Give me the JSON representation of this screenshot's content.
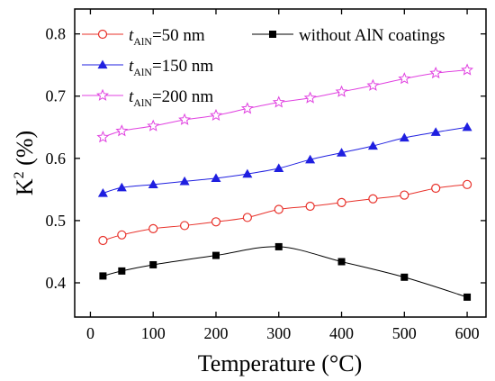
{
  "chart_data": {
    "type": "line",
    "xlabel": "Temperature (°C)",
    "ylabel": {
      "base": "K",
      "superscript": "2",
      "rest": " (%)"
    },
    "xlim": [
      -25,
      630
    ],
    "ylim": [
      0.345,
      0.84
    ],
    "xticks": [
      0,
      100,
      200,
      300,
      400,
      500,
      600
    ],
    "yticks": [
      0.4,
      0.5,
      0.6,
      0.7,
      0.8
    ],
    "grid": false,
    "legend": "top",
    "series": [
      {
        "key": "t50",
        "name": {
          "prefix": "t",
          "sub": "AlN",
          "rest": "=50 nm"
        },
        "color": "#e8312a",
        "marker": "open-circle",
        "x": [
          20,
          50,
          100,
          150,
          200,
          250,
          300,
          350,
          400,
          450,
          500,
          550,
          600
        ],
        "values": [
          0.468,
          0.477,
          0.487,
          0.492,
          0.498,
          0.505,
          0.518,
          0.523,
          0.529,
          0.535,
          0.541,
          0.552,
          0.558
        ]
      },
      {
        "key": "none",
        "name": "without AlN coatings",
        "color": "#000000",
        "marker": "filled-square",
        "x": [
          20,
          50,
          100,
          200,
          300,
          400,
          500,
          600
        ],
        "values": [
          0.411,
          0.419,
          0.429,
          0.444,
          0.458,
          0.434,
          0.409,
          0.377
        ]
      },
      {
        "key": "t150",
        "name": {
          "prefix": "t",
          "sub": "AlN",
          "rest": "=150 nm"
        },
        "color": "#1f1fe0",
        "marker": "filled-triangle",
        "x": [
          20,
          50,
          100,
          150,
          200,
          250,
          300,
          350,
          400,
          450,
          500,
          550,
          600
        ],
        "values": [
          0.544,
          0.553,
          0.558,
          0.563,
          0.568,
          0.575,
          0.584,
          0.598,
          0.609,
          0.62,
          0.633,
          0.642,
          0.65
        ]
      },
      {
        "key": "t200",
        "name": {
          "prefix": "t",
          "sub": "AlN",
          "rest": "=200 nm"
        },
        "color": "#e040e0",
        "marker": "open-star",
        "x": [
          20,
          50,
          100,
          150,
          200,
          250,
          300,
          350,
          400,
          450,
          500,
          550,
          600
        ],
        "values": [
          0.634,
          0.644,
          0.652,
          0.662,
          0.669,
          0.68,
          0.69,
          0.697,
          0.707,
          0.717,
          0.728,
          0.737,
          0.742
        ]
      }
    ]
  }
}
